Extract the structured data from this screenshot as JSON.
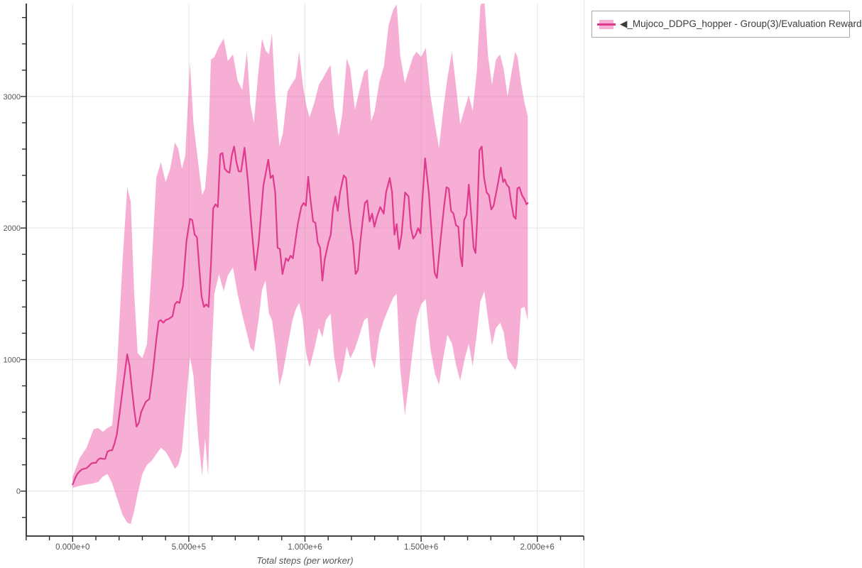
{
  "legend": {
    "label": "◀_Mujoco_DDPG_hopper - Group(3)/Evaluation Reward",
    "position": "outside-top-right"
  },
  "colors": {
    "line": "#e03a8e",
    "band_base": "#ed5da9",
    "band_opacity": 0.5,
    "grid": "#e5e5e5",
    "axis": "#2a2a2a",
    "tick_label": "#545454",
    "axis_title": "#555555",
    "legend_border": "#a9a9a9",
    "legend_text": "#3c3c3c",
    "panel_edge": "#e5e5e5"
  },
  "chart_data": {
    "type": "line",
    "title": "",
    "xlabel": "Total steps (per worker)",
    "ylabel": "",
    "grid": true,
    "series_name": "_Mujoco_DDPG_hopper - Group(3)/Evaluation Reward",
    "x_axis": {
      "range": [
        -200000,
        2200000
      ],
      "minor_tick_step": 100000,
      "major_ticks": [
        {
          "value": 0,
          "label": "0.000e+0"
        },
        {
          "value": 500000,
          "label": "5.000e+5"
        },
        {
          "value": 1000000,
          "label": "1.000e+6"
        },
        {
          "value": 1500000,
          "label": "1.500e+6"
        },
        {
          "value": 2000000,
          "label": "2.000e+6"
        }
      ]
    },
    "y_axis": {
      "range": [
        -342,
        3707
      ],
      "minor_tick_step": 200,
      "major_ticks": [
        {
          "value": 0,
          "label": "0"
        },
        {
          "value": 1000,
          "label": "1000"
        },
        {
          "value": 2000,
          "label": "2000"
        },
        {
          "value": 3000,
          "label": "3000"
        }
      ]
    },
    "mean": [
      [
        0,
        50
      ],
      [
        10000,
        95
      ],
      [
        20000,
        130
      ],
      [
        30000,
        150
      ],
      [
        40000,
        165
      ],
      [
        50000,
        170
      ],
      [
        60000,
        175
      ],
      [
        70000,
        190
      ],
      [
        80000,
        210
      ],
      [
        90000,
        215
      ],
      [
        100000,
        215
      ],
      [
        110000,
        240
      ],
      [
        120000,
        250
      ],
      [
        130000,
        245
      ],
      [
        140000,
        245
      ],
      [
        150000,
        300
      ],
      [
        160000,
        310
      ],
      [
        170000,
        310
      ],
      [
        180000,
        360
      ],
      [
        190000,
        430
      ],
      [
        200000,
        560
      ],
      [
        210000,
        700
      ],
      [
        220000,
        840
      ],
      [
        235000,
        1040
      ],
      [
        245000,
        950
      ],
      [
        255000,
        780
      ],
      [
        265000,
        620
      ],
      [
        275000,
        490
      ],
      [
        285000,
        520
      ],
      [
        295000,
        600
      ],
      [
        305000,
        640
      ],
      [
        315000,
        680
      ],
      [
        330000,
        700
      ],
      [
        345000,
        900
      ],
      [
        360000,
        1150
      ],
      [
        370000,
        1290
      ],
      [
        380000,
        1300
      ],
      [
        390000,
        1280
      ],
      [
        400000,
        1300
      ],
      [
        415000,
        1310
      ],
      [
        430000,
        1330
      ],
      [
        440000,
        1420
      ],
      [
        450000,
        1440
      ],
      [
        460000,
        1430
      ],
      [
        475000,
        1560
      ],
      [
        490000,
        1900
      ],
      [
        505000,
        2070
      ],
      [
        515000,
        2060
      ],
      [
        525000,
        1950
      ],
      [
        535000,
        1930
      ],
      [
        545000,
        1700
      ],
      [
        555000,
        1480
      ],
      [
        565000,
        1400
      ],
      [
        575000,
        1420
      ],
      [
        585000,
        1400
      ],
      [
        595000,
        1710
      ],
      [
        605000,
        2150
      ],
      [
        615000,
        2180
      ],
      [
        625000,
        2160
      ],
      [
        635000,
        2560
      ],
      [
        645000,
        2570
      ],
      [
        655000,
        2450
      ],
      [
        665000,
        2430
      ],
      [
        675000,
        2420
      ],
      [
        685000,
        2550
      ],
      [
        695000,
        2620
      ],
      [
        705000,
        2500
      ],
      [
        715000,
        2430
      ],
      [
        725000,
        2430
      ],
      [
        740000,
        2610
      ],
      [
        755000,
        2350
      ],
      [
        765000,
        2110
      ],
      [
        786000,
        1680
      ],
      [
        801000,
        1890
      ],
      [
        821000,
        2320
      ],
      [
        842000,
        2520
      ],
      [
        852000,
        2380
      ],
      [
        862000,
        2400
      ],
      [
        872000,
        2270
      ],
      [
        882000,
        1850
      ],
      [
        892000,
        1840
      ],
      [
        903000,
        1650
      ],
      [
        918000,
        1770
      ],
      [
        928000,
        1750
      ],
      [
        938000,
        1790
      ],
      [
        948000,
        1770
      ],
      [
        969000,
        2030
      ],
      [
        984000,
        2160
      ],
      [
        994000,
        2190
      ],
      [
        1004000,
        2170
      ],
      [
        1014000,
        2390
      ],
      [
        1024000,
        2210
      ],
      [
        1035000,
        2050
      ],
      [
        1045000,
        2040
      ],
      [
        1055000,
        1890
      ],
      [
        1065000,
        1850
      ],
      [
        1075000,
        1600
      ],
      [
        1085000,
        1760
      ],
      [
        1101000,
        1890
      ],
      [
        1111000,
        1950
      ],
      [
        1121000,
        2150
      ],
      [
        1131000,
        2240
      ],
      [
        1141000,
        2130
      ],
      [
        1151000,
        2270
      ],
      [
        1167000,
        2400
      ],
      [
        1177000,
        2380
      ],
      [
        1187000,
        2160
      ],
      [
        1197000,
        2000
      ],
      [
        1207000,
        1890
      ],
      [
        1218000,
        1650
      ],
      [
        1228000,
        1680
      ],
      [
        1238000,
        1890
      ],
      [
        1248000,
        2050
      ],
      [
        1258000,
        2190
      ],
      [
        1268000,
        2210
      ],
      [
        1278000,
        2050
      ],
      [
        1289000,
        2110
      ],
      [
        1299000,
        2010
      ],
      [
        1309000,
        2080
      ],
      [
        1324000,
        2160
      ],
      [
        1339000,
        2110
      ],
      [
        1349000,
        2270
      ],
      [
        1365000,
        2380
      ],
      [
        1375000,
        2270
      ],
      [
        1385000,
        1950
      ],
      [
        1395000,
        2030
      ],
      [
        1405000,
        1840
      ],
      [
        1416000,
        1950
      ],
      [
        1431000,
        2270
      ],
      [
        1446000,
        2240
      ],
      [
        1456000,
        2000
      ],
      [
        1466000,
        1920
      ],
      [
        1477000,
        1950
      ],
      [
        1487000,
        2000
      ],
      [
        1497000,
        1960
      ],
      [
        1505000,
        2200
      ],
      [
        1517000,
        2530
      ],
      [
        1533000,
        2270
      ],
      [
        1548000,
        1900
      ],
      [
        1558000,
        1660
      ],
      [
        1568000,
        1620
      ],
      [
        1583000,
        1900
      ],
      [
        1599000,
        2170
      ],
      [
        1609000,
        2310
      ],
      [
        1619000,
        2300
      ],
      [
        1629000,
        2130
      ],
      [
        1639000,
        2110
      ],
      [
        1650000,
        2020
      ],
      [
        1660000,
        2010
      ],
      [
        1670000,
        1780
      ],
      [
        1677000,
        1710
      ],
      [
        1685000,
        2060
      ],
      [
        1695000,
        2100
      ],
      [
        1705000,
        2330
      ],
      [
        1716000,
        2090
      ],
      [
        1726000,
        1850
      ],
      [
        1734000,
        1810
      ],
      [
        1741000,
        2060
      ],
      [
        1751000,
        2590
      ],
      [
        1761000,
        2620
      ],
      [
        1771000,
        2380
      ],
      [
        1782000,
        2270
      ],
      [
        1792000,
        2250
      ],
      [
        1802000,
        2140
      ],
      [
        1812000,
        2170
      ],
      [
        1822000,
        2260
      ],
      [
        1832000,
        2350
      ],
      [
        1843000,
        2460
      ],
      [
        1853000,
        2350
      ],
      [
        1860000,
        2370
      ],
      [
        1868000,
        2330
      ],
      [
        1878000,
        2310
      ],
      [
        1888000,
        2190
      ],
      [
        1898000,
        2090
      ],
      [
        1907000,
        2070
      ],
      [
        1914000,
        2300
      ],
      [
        1923000,
        2310
      ],
      [
        1934000,
        2250
      ],
      [
        1944000,
        2220
      ],
      [
        1954000,
        2180
      ],
      [
        1959000,
        2190
      ]
    ],
    "band": [
      [
        0,
        25,
        110
      ],
      [
        30000,
        40,
        250
      ],
      [
        60000,
        50,
        330
      ],
      [
        90000,
        60,
        470
      ],
      [
        110000,
        70,
        480
      ],
      [
        130000,
        110,
        450
      ],
      [
        150000,
        130,
        480
      ],
      [
        170000,
        60,
        500
      ],
      [
        190000,
        -50,
        900
      ],
      [
        215000,
        -180,
        1750
      ],
      [
        235000,
        -240,
        2310
      ],
      [
        250000,
        -250,
        2200
      ],
      [
        265000,
        -150,
        1500
      ],
      [
        280000,
        -20,
        1050
      ],
      [
        300000,
        130,
        1010
      ],
      [
        320000,
        200,
        1120
      ],
      [
        340000,
        230,
        1700
      ],
      [
        360000,
        280,
        2380
      ],
      [
        380000,
        330,
        2500
      ],
      [
        400000,
        300,
        2350
      ],
      [
        420000,
        240,
        2450
      ],
      [
        440000,
        170,
        2650
      ],
      [
        455000,
        200,
        2600
      ],
      [
        470000,
        300,
        2450
      ],
      [
        485000,
        600,
        2550
      ],
      [
        505000,
        1020,
        3260
      ],
      [
        520000,
        880,
        2800
      ],
      [
        540000,
        420,
        2500
      ],
      [
        557000,
        120,
        2250
      ],
      [
        570000,
        400,
        2300
      ],
      [
        583000,
        120,
        2580
      ],
      [
        595000,
        900,
        3280
      ],
      [
        610000,
        1500,
        3300
      ],
      [
        630000,
        1650,
        3380
      ],
      [
        650000,
        1520,
        3440
      ],
      [
        668000,
        1640,
        3270
      ],
      [
        690000,
        1700,
        3320
      ],
      [
        710000,
        1500,
        3120
      ],
      [
        730000,
        1340,
        3050
      ],
      [
        750000,
        1200,
        3340
      ],
      [
        765000,
        1090,
        2940
      ],
      [
        780000,
        1060,
        2800
      ],
      [
        800000,
        1300,
        3200
      ],
      [
        815000,
        1530,
        3440
      ],
      [
        830000,
        1600,
        3350
      ],
      [
        845000,
        1350,
        3320
      ],
      [
        858000,
        1300,
        3480
      ],
      [
        872000,
        1120,
        3010
      ],
      [
        890000,
        800,
        2620
      ],
      [
        905000,
        900,
        2720
      ],
      [
        925000,
        1100,
        3040
      ],
      [
        945000,
        1290,
        3100
      ],
      [
        960000,
        1380,
        3140
      ],
      [
        975000,
        1430,
        3340
      ],
      [
        990000,
        1310,
        3100
      ],
      [
        1005000,
        1050,
        2940
      ],
      [
        1020000,
        940,
        2840
      ],
      [
        1040000,
        1080,
        2950
      ],
      [
        1060000,
        1240,
        3090
      ],
      [
        1075000,
        1170,
        3130
      ],
      [
        1090000,
        1300,
        3180
      ],
      [
        1110000,
        1350,
        3240
      ],
      [
        1125000,
        1030,
        2920
      ],
      [
        1145000,
        820,
        2700
      ],
      [
        1160000,
        900,
        2860
      ],
      [
        1180000,
        1100,
        3290
      ],
      [
        1195000,
        1010,
        3210
      ],
      [
        1215000,
        1080,
        2900
      ],
      [
        1235000,
        1190,
        3050
      ],
      [
        1255000,
        1300,
        3190
      ],
      [
        1270000,
        1320,
        3210
      ],
      [
        1285000,
        1010,
        2810
      ],
      [
        1300000,
        930,
        2890
      ],
      [
        1320000,
        1190,
        3110
      ],
      [
        1340000,
        1300,
        3230
      ],
      [
        1360000,
        1390,
        3540
      ],
      [
        1380000,
        1470,
        3660
      ],
      [
        1395000,
        1500,
        3700
      ],
      [
        1410000,
        930,
        3310
      ],
      [
        1430000,
        580,
        3100
      ],
      [
        1445000,
        790,
        3190
      ],
      [
        1465000,
        1090,
        3300
      ],
      [
        1480000,
        1300,
        3340
      ],
      [
        1500000,
        1420,
        3300
      ],
      [
        1520000,
        1460,
        3370
      ],
      [
        1540000,
        1080,
        3010
      ],
      [
        1560000,
        890,
        2780
      ],
      [
        1577000,
        810,
        2610
      ],
      [
        1595000,
        1010,
        2900
      ],
      [
        1613000,
        1190,
        3140
      ],
      [
        1633000,
        1120,
        3340
      ],
      [
        1650000,
        960,
        3080
      ],
      [
        1668000,
        840,
        2790
      ],
      [
        1688000,
        1010,
        2910
      ],
      [
        1705000,
        1120,
        3010
      ],
      [
        1722000,
        950,
        2890
      ],
      [
        1740000,
        1200,
        3200
      ],
      [
        1755000,
        1440,
        3690
      ],
      [
        1772000,
        1520,
        3740
      ],
      [
        1788000,
        1310,
        3310
      ],
      [
        1805000,
        1110,
        3090
      ],
      [
        1822000,
        1240,
        3280
      ],
      [
        1840000,
        1280,
        3320
      ],
      [
        1855000,
        1210,
        3210
      ],
      [
        1872000,
        1010,
        3000
      ],
      [
        1890000,
        960,
        3190
      ],
      [
        1905000,
        920,
        3340
      ],
      [
        1915000,
        970,
        3300
      ],
      [
        1930000,
        1390,
        3100
      ],
      [
        1945000,
        1400,
        2950
      ],
      [
        1959000,
        1300,
        2850
      ]
    ]
  }
}
